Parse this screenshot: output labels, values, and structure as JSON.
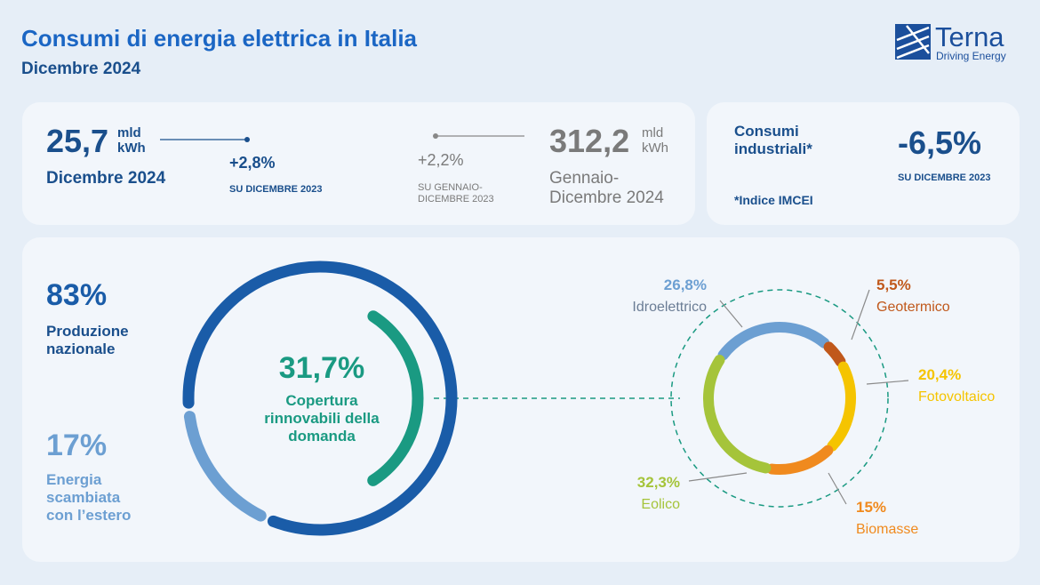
{
  "header": {
    "title": "Consumi di energia elettrica in Italia",
    "subtitle": "Dicembre 2024",
    "logo": {
      "name": "Terna",
      "tagline": "Driving Energy"
    }
  },
  "kpis": {
    "month": {
      "value": "25,7",
      "unit": "mld",
      "unit2": "kWh",
      "period": "Dicembre 2024",
      "change": "+2,8%",
      "change_label": "SU DICEMBRE 2023"
    },
    "year": {
      "value": "312,2",
      "unit": "mld",
      "unit2": "kWh",
      "period": "Gennaio-Dicembre 2024",
      "change": "+2,2%",
      "change_label": "SU GENNAIO-DICEMBRE 2023"
    },
    "industrial": {
      "label": "Consumi industriali*",
      "value": "-6,5%",
      "change_label": "SU DICEMBRE 2023",
      "note": "*Indice IMCEI"
    }
  },
  "supply": {
    "national": {
      "share": 83,
      "share_label": "83%",
      "label": "Produzione nazionale",
      "color": "#1a5ca8"
    },
    "exchange": {
      "share": 17,
      "share_label": "17%",
      "label": "Energia scambiata con l’estero",
      "color": "#6c9fd2"
    },
    "renewable_coverage": {
      "share": 31.7,
      "share_label": "31,7%",
      "label": "Copertura rinnovabili della domanda",
      "color": "#1a9a82"
    }
  },
  "renewables": [
    {
      "share": 26.8,
      "share_label": "26,8%",
      "name": "Idroelettrico",
      "color": "#6c9fd2"
    },
    {
      "share": 5.5,
      "share_label": "5,5%",
      "name": "Geotermico",
      "color": "#c0581b"
    },
    {
      "share": 20.4,
      "share_label": "20,4%",
      "name": "Fotovoltaico",
      "color": "#f5c400"
    },
    {
      "share": 15,
      "share_label": "15%",
      "name": "Biomasse",
      "color": "#f08a1e"
    },
    {
      "share": 32.3,
      "share_label": "32,3%",
      "name": "Eolico",
      "color": "#a5c43a"
    }
  ]
}
